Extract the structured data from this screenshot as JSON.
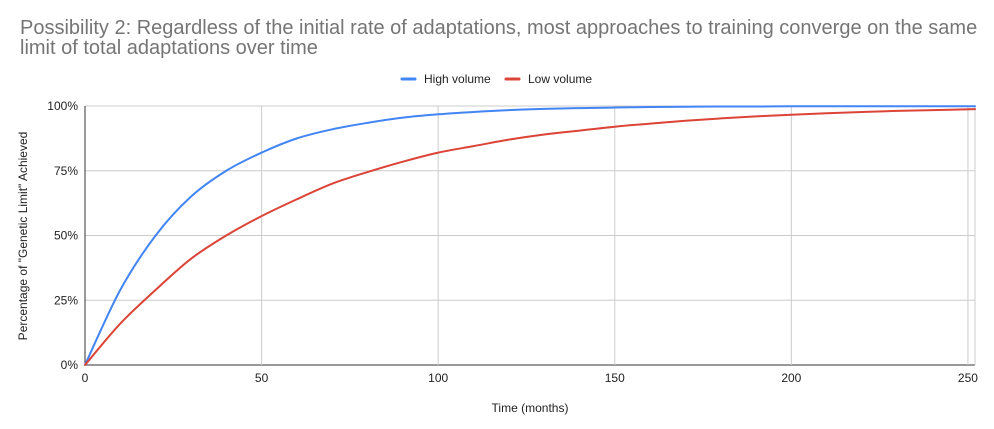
{
  "chart_data": {
    "type": "line",
    "title": "Possibility 2: Regardless of the initial rate of adaptations, most approaches to training converge on the same limit of total adaptations over time",
    "xlabel": "Time (months)",
    "ylabel": "Percentage of \"Genetic Limit\" Achieved",
    "xlim": [
      0,
      252
    ],
    "ylim": [
      0,
      1
    ],
    "x_ticks": [
      "0",
      "50",
      "100",
      "150",
      "200",
      "250"
    ],
    "y_ticks": [
      "0%",
      "25%",
      "50%",
      "75%",
      "100%"
    ],
    "grid": true,
    "legend_position": "top",
    "x": [
      0,
      10,
      20,
      30,
      40,
      50,
      60,
      70,
      80,
      90,
      100,
      110,
      120,
      130,
      140,
      150,
      160,
      170,
      180,
      190,
      200,
      210,
      220,
      230,
      240,
      252
    ],
    "series": [
      {
        "name": "High volume",
        "color": "#4285f4",
        "values": [
          0,
          0.29,
          0.5,
          0.65,
          0.75,
          0.82,
          0.875,
          0.91,
          0.935,
          0.955,
          0.968,
          0.977,
          0.984,
          0.989,
          0.992,
          0.994,
          0.996,
          0.997,
          0.998,
          0.998,
          0.999,
          0.999,
          0.999,
          0.999,
          0.999,
          0.999
        ]
      },
      {
        "name": "Low volume",
        "color": "#db4437",
        "values": [
          0,
          0.16,
          0.29,
          0.41,
          0.5,
          0.575,
          0.64,
          0.7,
          0.745,
          0.785,
          0.82,
          0.845,
          0.87,
          0.89,
          0.905,
          0.92,
          0.932,
          0.943,
          0.952,
          0.96,
          0.966,
          0.972,
          0.977,
          0.981,
          0.984,
          0.988
        ]
      }
    ]
  }
}
